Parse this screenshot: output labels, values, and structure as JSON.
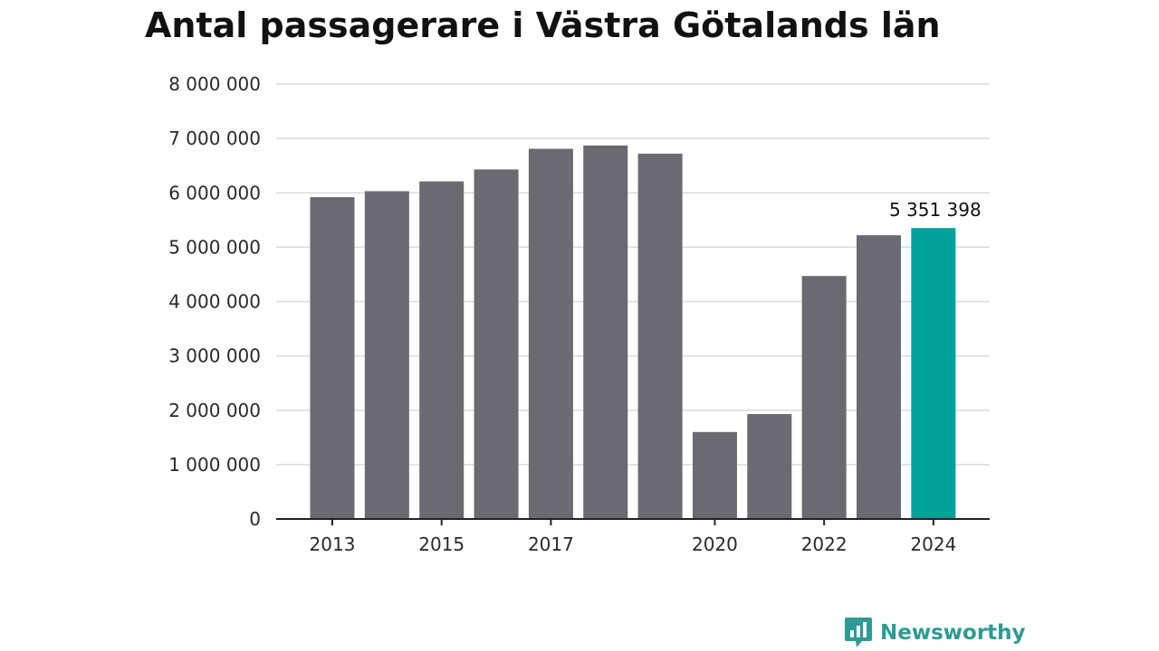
{
  "chart_data": {
    "type": "bar",
    "title": "Antal passagerare i Västra Götalands län",
    "xlabel": "",
    "ylabel": "",
    "categories": [
      "2013",
      "2014",
      "2015",
      "2016",
      "2017",
      "2018",
      "2019",
      "2020",
      "2021",
      "2022",
      "2023",
      "2024"
    ],
    "x_tick_labels": [
      "2013",
      "",
      "2015",
      "",
      "2017",
      "",
      "",
      "2020",
      "",
      "2022",
      "",
      "2024"
    ],
    "values": [
      5920000,
      6030000,
      6210000,
      6430000,
      6810000,
      6870000,
      6720000,
      1600000,
      1930000,
      4470000,
      5220000,
      5351398
    ],
    "ylim": [
      0,
      8000000
    ],
    "y_ticks": [
      0,
      1000000,
      2000000,
      3000000,
      4000000,
      5000000,
      6000000,
      7000000,
      8000000
    ],
    "y_tick_labels": [
      "0",
      "1 000 000",
      "2 000 000",
      "3 000 000",
      "4 000 000",
      "5 000 000",
      "6 000 000",
      "7 000 000",
      "8 000 000"
    ],
    "grid": true,
    "legend": "none",
    "bar_color": "#6b6a70",
    "highlight_color": "#00a19a",
    "highlight_index": 11,
    "annotations": [
      {
        "category": "2024",
        "text": "5 351 398"
      }
    ]
  },
  "brand": {
    "name": "Newsworthy",
    "icon": "newsworthy-logo-icon",
    "color": "#2e9a96"
  }
}
